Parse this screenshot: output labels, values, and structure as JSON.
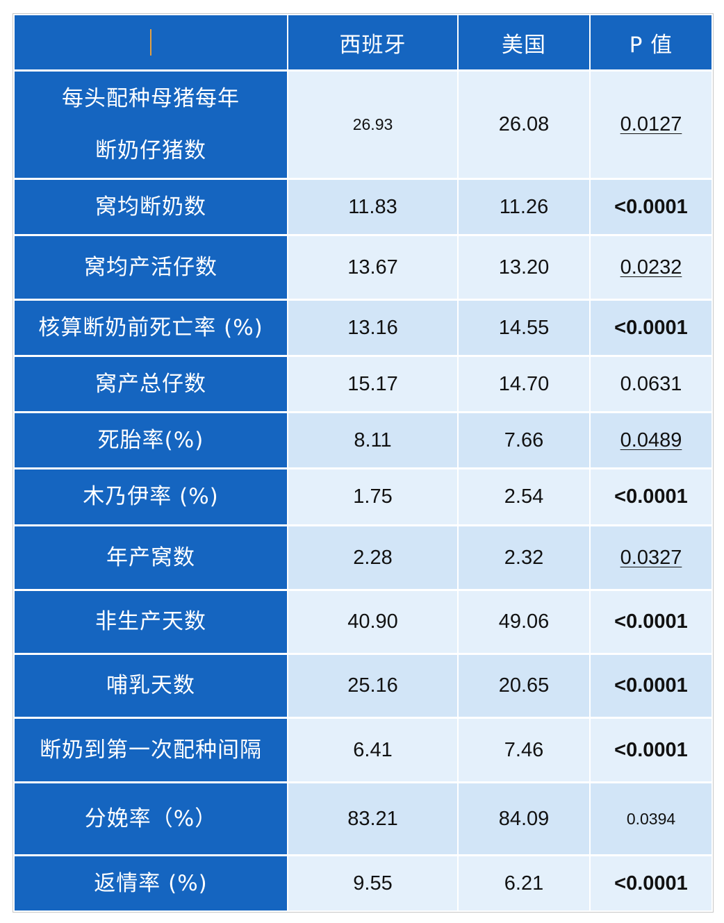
{
  "colors": {
    "blue": "#1565C0",
    "row_light": "#E4F0FB",
    "row_dark": "#D2E5F7",
    "light_text": "#FFFFFF",
    "dark_text": "#111111",
    "cursor": "#E4A040",
    "frame": "#C8C8C8"
  },
  "chart_data": {
    "type": "table",
    "columns": [
      "",
      "西班牙",
      "美国",
      "P 值"
    ],
    "rows": [
      {
        "label": [
          "每头配种母猪每年",
          "断奶仔猪数"
        ],
        "values": [
          "26.93",
          "26.08",
          "0.0127"
        ]
      },
      {
        "label": [
          "窝均断奶数"
        ],
        "values": [
          "11.83",
          "11.26",
          "<0.0001"
        ]
      },
      {
        "label": [
          "窝均产活仔数"
        ],
        "values": [
          "13.67",
          "13.20",
          "0.0232"
        ]
      },
      {
        "label": [
          "核算断奶前死亡率 (%)"
        ],
        "values": [
          "13.16",
          "14.55",
          "<0.0001"
        ]
      },
      {
        "label": [
          "窝产总仔数"
        ],
        "values": [
          "15.17",
          "14.70",
          "0.0631"
        ]
      },
      {
        "label": [
          "死胎率(%)"
        ],
        "values": [
          "8.11",
          "7.66",
          "0.0489"
        ]
      },
      {
        "label": [
          "木乃伊率 (%)"
        ],
        "values": [
          "1.75",
          "2.54",
          "<0.0001"
        ]
      },
      {
        "label": [
          "年产窝数"
        ],
        "values": [
          "2.28",
          "2.32",
          "0.0327"
        ]
      },
      {
        "label": [
          "非生产天数"
        ],
        "values": [
          "40.90",
          "49.06",
          "<0.0001"
        ]
      },
      {
        "label": [
          "哺乳天数"
        ],
        "values": [
          "25.16",
          "20.65",
          "<0.0001"
        ]
      },
      {
        "label": [
          "断奶到第一次配种间隔"
        ],
        "values": [
          "6.41",
          "7.46",
          "<0.0001"
        ]
      },
      {
        "label": [
          "分娩率（%）"
        ],
        "values": [
          "83.21",
          "84.09",
          "0.0394"
        ]
      },
      {
        "label": [
          "返情率 (%)"
        ],
        "values": [
          "9.55",
          "6.21",
          "<0.0001"
        ]
      }
    ]
  }
}
